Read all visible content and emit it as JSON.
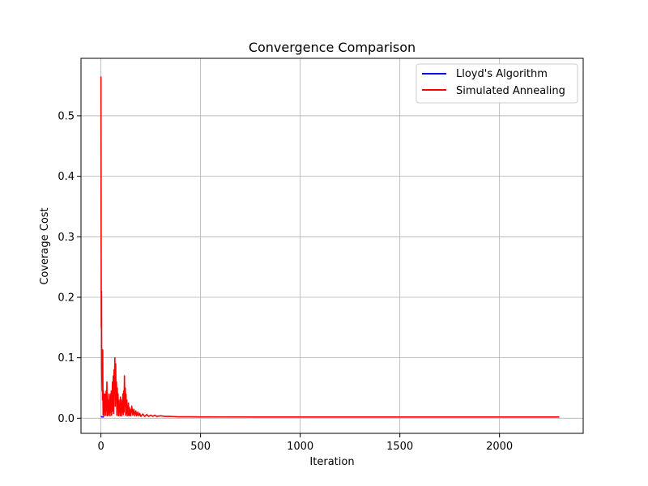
{
  "chart_data": {
    "type": "line",
    "title": "Convergence Comparison",
    "xlabel": "Iteration",
    "ylabel": "Coverage Cost",
    "xlim": [
      -100,
      2420
    ],
    "ylim": [
      -0.025,
      0.595
    ],
    "xticks": [
      0,
      500,
      1000,
      1500,
      2000
    ],
    "xtick_labels": [
      "0",
      "500",
      "1000",
      "1500",
      "2000"
    ],
    "yticks": [
      0.0,
      0.1,
      0.2,
      0.3,
      0.4,
      0.5
    ],
    "ytick_labels": [
      "0.0",
      "0.1",
      "0.2",
      "0.3",
      "0.4",
      "0.5"
    ],
    "grid": true,
    "legend_position": "top-right",
    "series": [
      {
        "name": "Lloyd's Algorithm",
        "color": "#0000ff",
        "x": [
          0,
          3,
          6,
          10,
          15
        ],
        "y": [
          0.003,
          0.0025,
          0.0022,
          0.0021,
          0.002
        ]
      },
      {
        "name": "Simulated Annealing",
        "color": "#ff0000",
        "x": [
          0,
          1,
          2,
          3,
          4,
          5,
          6,
          7,
          8,
          9,
          10,
          11,
          12,
          13,
          14,
          16,
          18,
          20,
          22,
          24,
          26,
          28,
          30,
          32,
          34,
          36,
          38,
          40,
          42,
          44,
          46,
          48,
          50,
          52,
          54,
          56,
          58,
          60,
          62,
          64,
          66,
          68,
          70,
          72,
          74,
          76,
          78,
          80,
          82,
          84,
          86,
          88,
          90,
          92,
          94,
          96,
          98,
          100,
          102,
          104,
          106,
          108,
          110,
          112,
          114,
          116,
          118,
          120,
          122,
          124,
          126,
          128,
          130,
          132,
          134,
          136,
          138,
          140,
          142,
          144,
          146,
          150,
          155,
          160,
          165,
          170,
          175,
          180,
          185,
          190,
          195,
          200,
          210,
          220,
          230,
          240,
          250,
          260,
          270,
          280,
          300,
          320,
          340,
          360,
          380,
          400,
          450,
          500,
          600,
          800,
          1000,
          1500,
          2000,
          2300
        ],
        "y": [
          0.565,
          0.3,
          0.15,
          0.21,
          0.08,
          0.06,
          0.045,
          0.11,
          0.03,
          0.113,
          0.05,
          0.005,
          0.045,
          0.01,
          0.04,
          0.004,
          0.03,
          0.04,
          0.02,
          0.005,
          0.045,
          0.012,
          0.06,
          0.004,
          0.03,
          0.012,
          0.005,
          0.04,
          0.01,
          0.025,
          0.004,
          0.04,
          0.01,
          0.045,
          0.005,
          0.03,
          0.06,
          0.012,
          0.07,
          0.008,
          0.08,
          0.05,
          0.1,
          0.02,
          0.09,
          0.03,
          0.06,
          0.005,
          0.05,
          0.02,
          0.04,
          0.004,
          0.03,
          0.01,
          0.02,
          0.004,
          0.035,
          0.01,
          0.03,
          0.004,
          0.025,
          0.01,
          0.04,
          0.006,
          0.045,
          0.01,
          0.07,
          0.02,
          0.05,
          0.005,
          0.04,
          0.008,
          0.03,
          0.004,
          0.02,
          0.006,
          0.025,
          0.004,
          0.018,
          0.005,
          0.015,
          0.004,
          0.02,
          0.005,
          0.015,
          0.004,
          0.012,
          0.004,
          0.01,
          0.004,
          0.008,
          0.003,
          0.007,
          0.003,
          0.006,
          0.003,
          0.005,
          0.003,
          0.005,
          0.003,
          0.004,
          0.003,
          0.003,
          0.0028,
          0.0025,
          0.0024,
          0.0023,
          0.0022,
          0.0021,
          0.002,
          0.002,
          0.002,
          0.002,
          0.002
        ]
      }
    ]
  }
}
